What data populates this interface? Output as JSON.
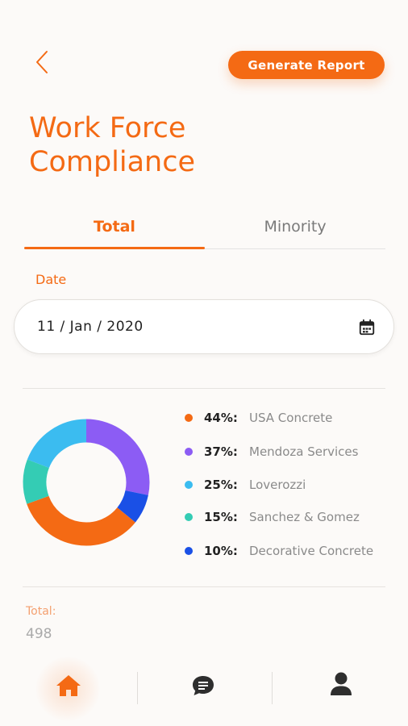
{
  "header": {
    "generate_report_label": "Generate Report"
  },
  "page_title": "Work Force Compliance",
  "tabs": [
    {
      "label": "Total",
      "active": true
    },
    {
      "label": "Minority",
      "active": false
    }
  ],
  "date": {
    "label": "Date",
    "value": "11 / Jan / 2020"
  },
  "breakdown": [
    {
      "percent": "44%:",
      "name": "USA Concrete",
      "color": "#f46a14"
    },
    {
      "percent": "37%:",
      "name": "Mendoza Services",
      "color": "#8c5cf4"
    },
    {
      "percent": "25%:",
      "name": "Loverozzi",
      "color": "#3bbcf0"
    },
    {
      "percent": "15%:",
      "name": "Sanchez & Gomez",
      "color": "#34ccb4"
    },
    {
      "percent": "10%:",
      "name": "Decorative Concrete",
      "color": "#1a50e6"
    }
  ],
  "donut_segments": [
    {
      "name": "Mendoza Services",
      "value": 37,
      "color": "#8c5cf4"
    },
    {
      "name": "Decorative Concrete",
      "value": 10,
      "color": "#1a50e6"
    },
    {
      "name": "USA Concrete",
      "value": 44,
      "color": "#f46a14"
    },
    {
      "name": "Sanchez & Gomez",
      "value": 15,
      "color": "#34ccb4"
    },
    {
      "name": "Loverozzi",
      "value": 25,
      "color": "#3bbcf0"
    }
  ],
  "summary": {
    "total_label": "Total:",
    "total_value": "498"
  },
  "nav": {
    "items": [
      "home-icon",
      "chat-icon",
      "user-icon"
    ],
    "active": "home-icon"
  },
  "colors": {
    "accent": "#f46a14",
    "background": "#fcfaf8"
  }
}
